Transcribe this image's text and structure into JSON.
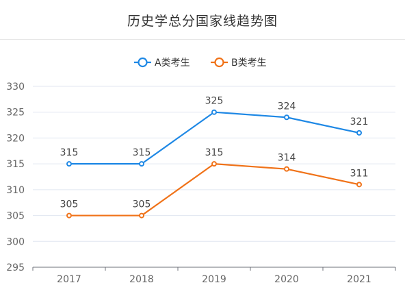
{
  "chart_data": {
    "type": "line",
    "title": "历史学总分国家线趋势图",
    "categories": [
      "2017",
      "2018",
      "2019",
      "2020",
      "2021"
    ],
    "series": [
      {
        "name": "A类考生",
        "color": "#1e88e5",
        "values": [
          315,
          315,
          325,
          324,
          321
        ]
      },
      {
        "name": "B类考生",
        "color": "#f07218",
        "values": [
          305,
          305,
          315,
          314,
          311
        ]
      }
    ],
    "yticks": [
      295,
      300,
      305,
      310,
      315,
      320,
      325,
      330
    ],
    "ylim": [
      295,
      330
    ],
    "grid": true,
    "legend_position": "top-center",
    "xlabel": "",
    "ylabel": ""
  }
}
